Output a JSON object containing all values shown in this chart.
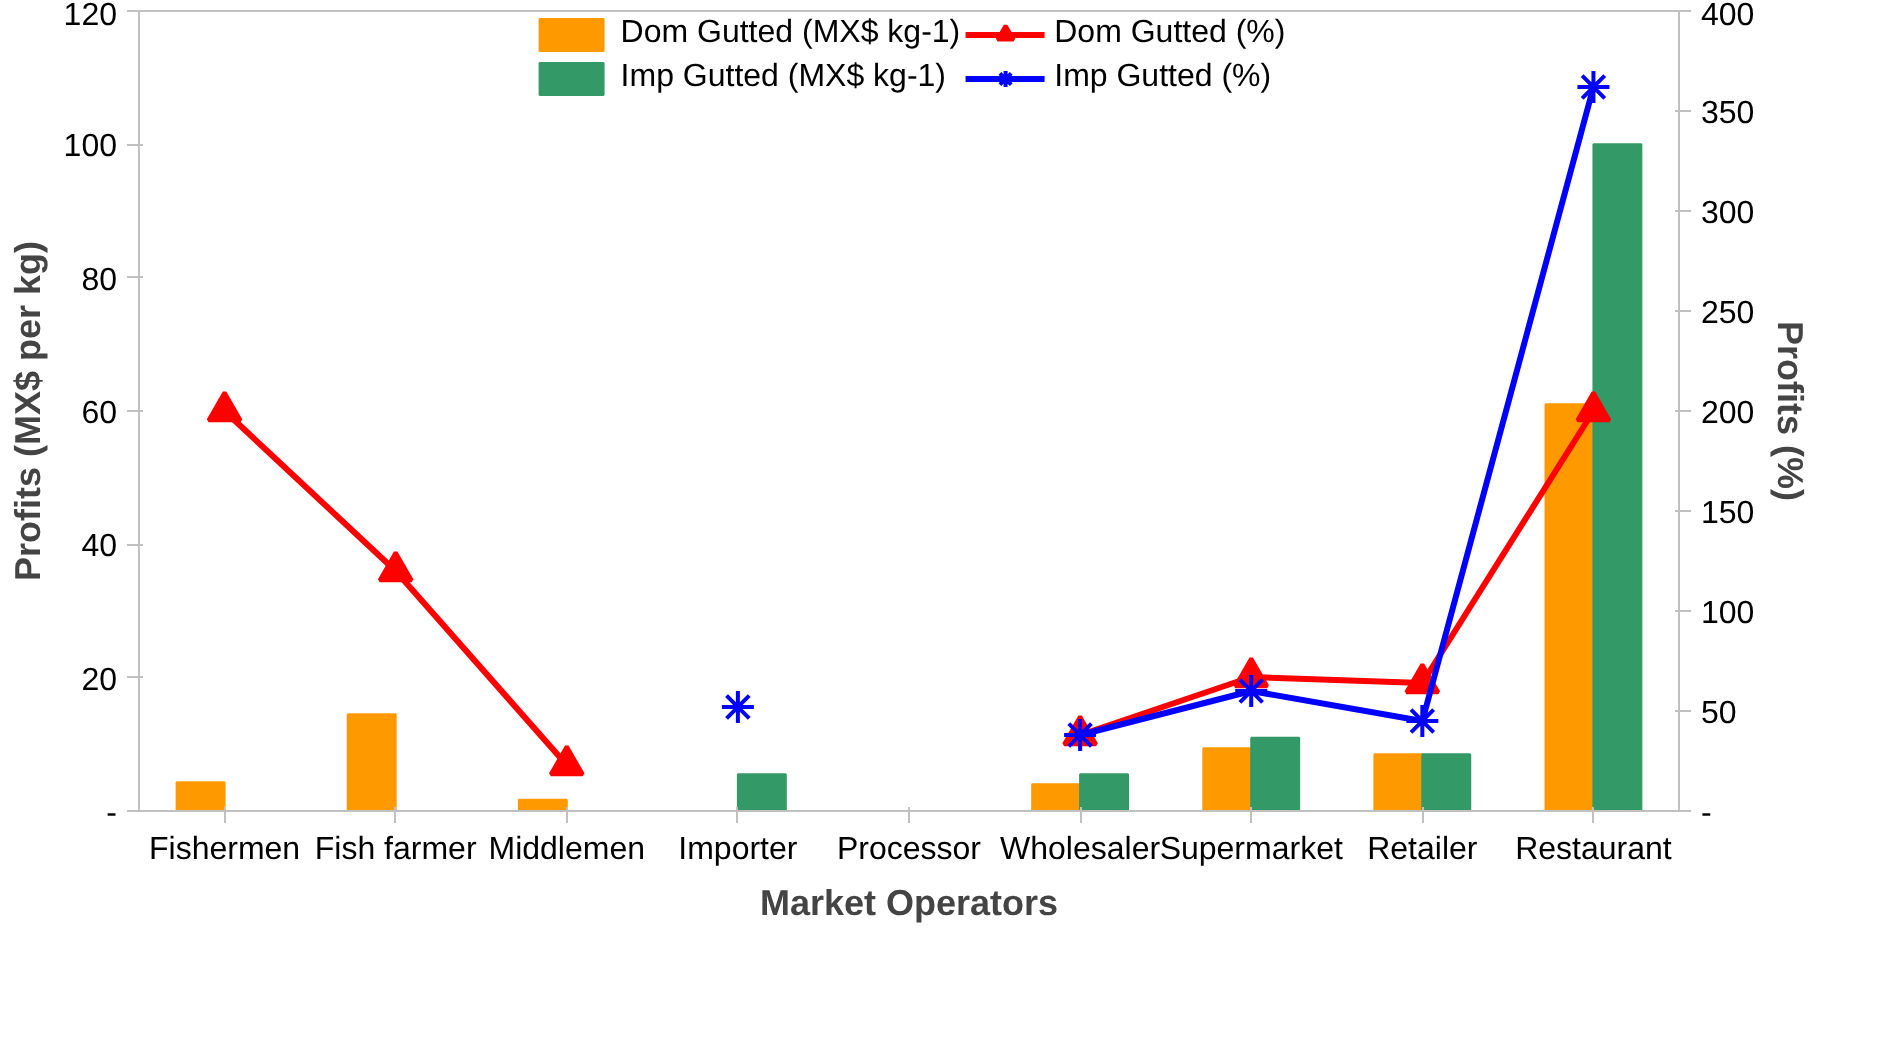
{
  "chart_data": {
    "type": "bar",
    "xlabel": "Market Operators",
    "ylabel": "Profits (MX$ per kg)",
    "y2label": "Profits (%)",
    "categories": [
      "Fishermen",
      "Fish farmer",
      "Middlemen",
      "Importer",
      "Processor",
      "Wholesaler",
      "Supermarket",
      "Retailer",
      "Restaurant"
    ],
    "series": [
      {
        "name": "Dom Gutted (MX$ kg-1)",
        "color": "#ff9900",
        "values": [
          4.3,
          14.5,
          1.7,
          null,
          null,
          4,
          9.4,
          8.5,
          61
        ]
      },
      {
        "name": "Imp Gutted (MX$ kg-1)",
        "color": "#339966",
        "values": [
          null,
          null,
          null,
          5.5,
          null,
          5.5,
          11,
          8.5,
          100
        ]
      },
      {
        "name": "Dom Gutted (%)",
        "type": "line",
        "axis": "y2",
        "marker": "triangle",
        "color": "#ff0000",
        "values": [
          200,
          120,
          23,
          null,
          null,
          38,
          67,
          64,
          200
        ]
      },
      {
        "name": "Imp Gutted (%)",
        "type": "line",
        "axis": "y2",
        "marker": "cross",
        "color": "#0000ff",
        "values": [
          null,
          null,
          null,
          52,
          null,
          38,
          60,
          45,
          362
        ]
      }
    ],
    "ylim": [
      0,
      120
    ],
    "yticks": [
      {
        "value": 0,
        "label": "-"
      },
      20,
      40,
      60,
      80,
      100,
      120
    ],
    "y2lim": [
      0,
      400
    ],
    "y2ticks": [
      {
        "value": 0,
        "label": "-"
      },
      50,
      100,
      150,
      200,
      250,
      300,
      350,
      400
    ],
    "grid": false,
    "legend": "top"
  }
}
